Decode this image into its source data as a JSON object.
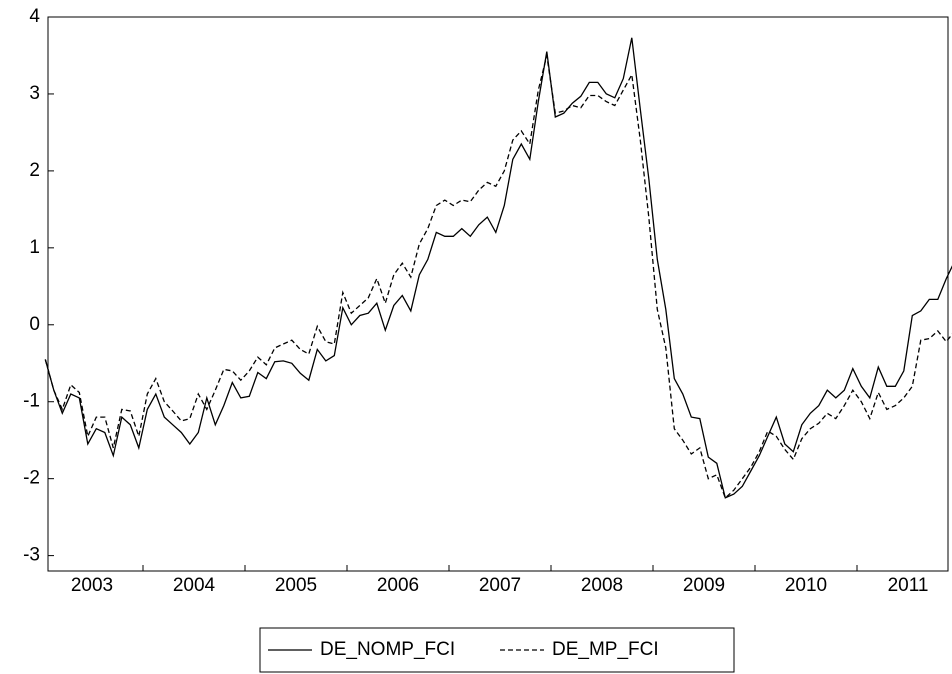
{
  "chart_data": {
    "type": "line",
    "categories": [
      null,
      null,
      null,
      null,
      null,
      null,
      "2003",
      null,
      null,
      null,
      null,
      null,
      null,
      null,
      null,
      null,
      null,
      null,
      "2004",
      null,
      null,
      null,
      null,
      null,
      null,
      null,
      null,
      null,
      null,
      null,
      "2005",
      null,
      null,
      null,
      null,
      null,
      null,
      null,
      null,
      null,
      null,
      null,
      "2006",
      null,
      null,
      null,
      null,
      null,
      null,
      null,
      null,
      null,
      null,
      null,
      "2007",
      null,
      null,
      null,
      null,
      null,
      null,
      null,
      null,
      null,
      null,
      null,
      "2008",
      null,
      null,
      null,
      null,
      null,
      null,
      null,
      null,
      null,
      null,
      null,
      "2009",
      null,
      null,
      null,
      null,
      null,
      null,
      null,
      null,
      null,
      null,
      null,
      "2010",
      null,
      null,
      null,
      null,
      null,
      null,
      null,
      null,
      null,
      null,
      null,
      "2011",
      null,
      null,
      null,
      null,
      null
    ],
    "series": [
      {
        "name": "DE_NOMP_FCI",
        "color": "#000000",
        "dash": "solid",
        "values": [
          -0.45,
          -0.85,
          -1.15,
          -0.9,
          -0.95,
          -1.55,
          -1.35,
          -1.4,
          -1.7,
          -1.2,
          -1.3,
          -1.6,
          -1.1,
          -0.9,
          -1.2,
          -1.3,
          -1.4,
          -1.55,
          -1.4,
          -0.95,
          -1.3,
          -1.05,
          -0.75,
          -0.95,
          -0.93,
          -0.62,
          -0.7,
          -0.48,
          -0.47,
          -0.5,
          -0.63,
          -0.72,
          -0.32,
          -0.47,
          -0.4,
          0.22,
          0.0,
          0.12,
          0.15,
          0.28,
          -0.07,
          0.25,
          0.38,
          0.18,
          0.65,
          0.85,
          1.2,
          1.15,
          1.15,
          1.25,
          1.15,
          1.3,
          1.4,
          1.2,
          1.55,
          2.15,
          2.35,
          2.15,
          2.9,
          3.55,
          2.7,
          2.75,
          2.88,
          2.97,
          3.15,
          3.15,
          3.0,
          2.95,
          3.2,
          3.73,
          2.8,
          1.9,
          0.85,
          0.2,
          -0.7,
          -0.9,
          -1.2,
          -1.22,
          -1.72,
          -1.8,
          -2.25,
          -2.2,
          -2.1,
          -1.9,
          -1.7,
          -1.45,
          -1.2,
          -1.55,
          -1.65,
          -1.3,
          -1.15,
          -1.05,
          -0.85,
          -0.95,
          -0.85,
          -0.57,
          -0.8,
          -0.95,
          -0.55,
          -0.8,
          -0.8,
          -0.6,
          0.12,
          0.18,
          0.33,
          0.33,
          0.6,
          0.83
        ]
      },
      {
        "name": "DE_MP_FCI",
        "color": "#000000",
        "dash": "dashed",
        "values": [
          -0.45,
          -0.85,
          -1.1,
          -0.78,
          -0.88,
          -1.45,
          -1.2,
          -1.2,
          -1.6,
          -1.1,
          -1.12,
          -1.45,
          -0.9,
          -0.7,
          -1.0,
          -1.12,
          -1.25,
          -1.22,
          -0.9,
          -1.1,
          -0.85,
          -0.58,
          -0.6,
          -0.72,
          -0.6,
          -0.42,
          -0.52,
          -0.3,
          -0.25,
          -0.2,
          -0.32,
          -0.38,
          -0.02,
          -0.22,
          -0.25,
          0.42,
          0.15,
          0.25,
          0.35,
          0.6,
          0.28,
          0.65,
          0.8,
          0.62,
          1.05,
          1.25,
          1.55,
          1.62,
          1.55,
          1.62,
          1.6,
          1.75,
          1.85,
          1.8,
          2.0,
          2.4,
          2.52,
          2.35,
          3.05,
          3.5,
          2.75,
          2.78,
          2.85,
          2.82,
          2.98,
          2.98,
          2.9,
          2.85,
          3.05,
          3.25,
          2.4,
          1.4,
          0.2,
          -0.3,
          -1.35,
          -1.5,
          -1.68,
          -1.6,
          -2.0,
          -1.95,
          -2.25,
          -2.15,
          -2.0,
          -1.85,
          -1.65,
          -1.38,
          -1.45,
          -1.62,
          -1.75,
          -1.48,
          -1.35,
          -1.28,
          -1.15,
          -1.22,
          -1.05,
          -0.85,
          -1.0,
          -1.22,
          -0.88,
          -1.1,
          -1.05,
          -0.95,
          -0.8,
          -0.2,
          -0.18,
          -0.08,
          -0.22,
          -0.08
        ]
      }
    ],
    "ylim": [
      -3.2,
      4
    ],
    "yticks": [
      -3,
      -2,
      -1,
      0,
      1,
      2,
      3,
      4
    ],
    "grid": false,
    "legend": "bottom"
  }
}
